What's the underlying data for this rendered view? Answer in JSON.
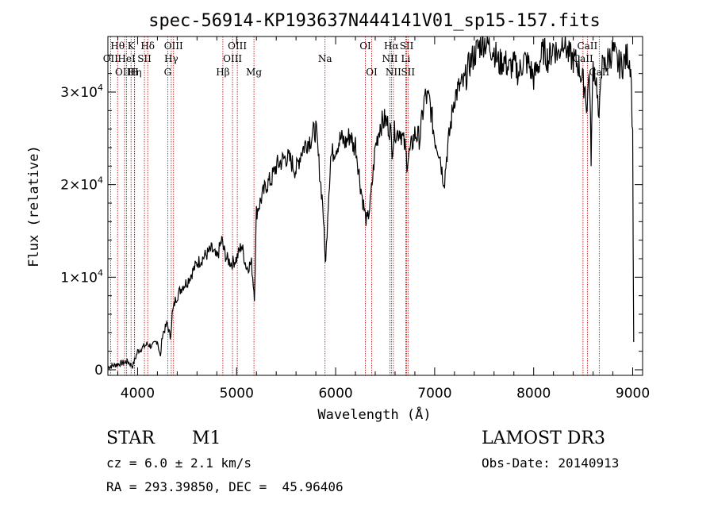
{
  "chart_data": {
    "type": "line",
    "title": "spec-56914-KP193637N444141V01_sp15-157.fits",
    "xlabel": "Wavelength (Å)",
    "ylabel": "Flux (relative)",
    "xlim": [
      3700,
      9100
    ],
    "ylim": [
      -600,
      36000
    ],
    "x_ticks": [
      4000,
      5000,
      6000,
      7000,
      8000,
      9000
    ],
    "y_ticks": [
      {
        "value": 0,
        "mant": "0",
        "exp": ""
      },
      {
        "value": 10000,
        "mant": "1×10",
        "exp": "4"
      },
      {
        "value": 20000,
        "mant": "2×10",
        "exp": "4"
      },
      {
        "value": 30000,
        "mant": "3×10",
        "exp": "4"
      }
    ],
    "series": [
      {
        "name": "spectrum",
        "x": [
          3700,
          3800,
          3900,
          3950,
          4000,
          4050,
          4100,
          4150,
          4200,
          4230,
          4250,
          4280,
          4300,
          4330,
          4350,
          4380,
          4400,
          4450,
          4500,
          4550,
          4600,
          4650,
          4700,
          4750,
          4800,
          4850,
          4870,
          4900,
          4950,
          5000,
          5050,
          5100,
          5150,
          5180,
          5200,
          5250,
          5300,
          5350,
          5400,
          5450,
          5500,
          5550,
          5600,
          5650,
          5700,
          5750,
          5800,
          5850,
          5870,
          5890,
          5900,
          5920,
          5950,
          6000,
          6050,
          6100,
          6150,
          6180,
          6200,
          6250,
          6300,
          6320,
          6350,
          6380,
          6400,
          6450,
          6500,
          6550,
          6570,
          6600,
          6620,
          6650,
          6700,
          6720,
          6750,
          6800,
          6850,
          6900,
          6950,
          7000,
          7050,
          7080,
          7100,
          7120,
          7150,
          7180,
          7200,
          7250,
          7300,
          7350,
          7400,
          7450,
          7500,
          7550,
          7600,
          7650,
          7700,
          7750,
          7800,
          7850,
          7900,
          7950,
          8000,
          8050,
          8100,
          8150,
          8200,
          8250,
          8300,
          8350,
          8400,
          8450,
          8500,
          8520,
          8540,
          8560,
          8580,
          8600,
          8620,
          8640,
          8660,
          8680,
          8700,
          8750,
          8800,
          8850,
          8900,
          8950,
          8980,
          9000,
          9010
        ],
        "y": [
          300,
          600,
          900,
          400,
          2000,
          2400,
          2800,
          2500,
          3200,
          1300,
          3800,
          4500,
          5000,
          3500,
          6000,
          7500,
          8000,
          9000,
          9500,
          10500,
          11500,
          12000,
          12500,
          13000,
          12000,
          14000,
          13000,
          12000,
          11500,
          12000,
          13500,
          11000,
          11500,
          8000,
          17000,
          18500,
          20000,
          20500,
          22000,
          22500,
          23000,
          22500,
          21500,
          23500,
          24500,
          25000,
          26000,
          20000,
          18000,
          13000,
          11500,
          17000,
          23000,
          24000,
          25000,
          24500,
          25500,
          24000,
          24500,
          20000,
          16500,
          16000,
          18000,
          21500,
          24000,
          26500,
          27000,
          26000,
          24000,
          26000,
          25500,
          26000,
          24000,
          22500,
          23500,
          25500,
          25000,
          29500,
          29000,
          25000,
          23500,
          21000,
          20500,
          23000,
          25500,
          28000,
          29500,
          30500,
          31000,
          33000,
          34000,
          35000,
          35500,
          35000,
          34500,
          33000,
          33500,
          32500,
          33000,
          32000,
          33500,
          33000,
          31500,
          33000,
          34500,
          33500,
          35000,
          34000,
          36000,
          34000,
          33500,
          33000,
          31000,
          30500,
          28000,
          33000,
          23000,
          33000,
          32000,
          30500,
          26000,
          33000,
          32500,
          33500,
          34500,
          33000,
          33000,
          34000,
          33000,
          25000,
          3000
        ]
      }
    ],
    "spectral_lines": [
      {
        "label": "Hθ",
        "wl": 3798,
        "row": 1
      },
      {
        "label": "OII",
        "wl": 3727,
        "row": 2
      },
      {
        "label": "OIII",
        "wl": 3869,
        "row": 3
      },
      {
        "label": "HeI",
        "wl": 3889,
        "row": 2
      },
      {
        "label": "K",
        "wl": 3934,
        "row": 1
      },
      {
        "label": "Hη",
        "wl": 3970,
        "row": 3
      },
      {
        "label": "SII",
        "wl": 4069,
        "row": 2
      },
      {
        "label": "H",
        "wl": 3968,
        "row": 3
      },
      {
        "label": "Hδ",
        "wl": 4102,
        "row": 1
      },
      {
        "label": "OIII",
        "wl": 4363,
        "row": 1
      },
      {
        "label": "Hγ",
        "wl": 4340,
        "row": 2
      },
      {
        "label": "G",
        "wl": 4304,
        "row": 3
      },
      {
        "label": "Hβ",
        "wl": 4861,
        "row": 3
      },
      {
        "label": "OIII",
        "wl": 5007,
        "row": 1
      },
      {
        "label": "OIII",
        "wl": 4959,
        "row": 2
      },
      {
        "label": "Mg",
        "wl": 5175,
        "row": 3
      },
      {
        "label": "Na",
        "wl": 5893,
        "row": 2
      },
      {
        "label": "OI",
        "wl": 6300,
        "row": 1
      },
      {
        "label": "OI",
        "wl": 6364,
        "row": 3
      },
      {
        "label": "Hα",
        "wl": 6563,
        "row": 1
      },
      {
        "label": "NII",
        "wl": 6548,
        "row": 2
      },
      {
        "label": "NII",
        "wl": 6583,
        "row": 3
      },
      {
        "label": "SII",
        "wl": 6717,
        "row": 1
      },
      {
        "label": "Li",
        "wl": 6708,
        "row": 2
      },
      {
        "label": "SII",
        "wl": 6731,
        "row": 3
      },
      {
        "label": "CaII",
        "wl": 8542,
        "row": 1
      },
      {
        "label": "CaII",
        "wl": 8498,
        "row": 2
      },
      {
        "label": "CaII",
        "wl": 8662,
        "row": 3
      }
    ]
  },
  "info": {
    "class": "STAR",
    "subclass": "M1",
    "survey": "LAMOST DR3",
    "cz": "cz = 6.0 ± 2.1 km/s",
    "obs_date": "Obs-Date: 20140913",
    "coords": "RA = 293.39850, DEC =  45.96406"
  },
  "colors": {
    "spectrum": "#000000",
    "line_marker": "#c00000",
    "axis": "#000000"
  }
}
